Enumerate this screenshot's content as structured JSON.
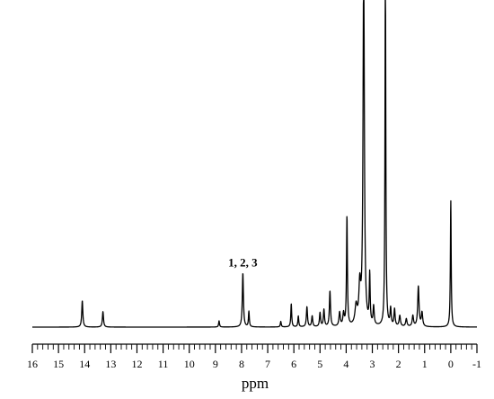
{
  "chart_data": {
    "type": "line",
    "xlabel": "ppm",
    "ylabel": "",
    "title": "",
    "xlim": [
      16,
      -1
    ],
    "x_reversed": true,
    "ylim": [
      0,
      1
    ],
    "grid": false,
    "legend": "none",
    "x_ticks": [
      16,
      15,
      14,
      13,
      12,
      11,
      10,
      9,
      8,
      7,
      6,
      5,
      4,
      3,
      2,
      1,
      0,
      -1
    ],
    "x_tick_labels": [
      "16",
      "15",
      "14",
      "13",
      "12",
      "11",
      "10",
      "9",
      "8",
      "7",
      "6",
      "5",
      "4",
      "3",
      "2",
      "1",
      "0",
      "-1"
    ],
    "minor_tick_step": 0.2,
    "baseline": 0.02,
    "line_color": "#000000",
    "peaks": [
      {
        "ppm": 14.09,
        "height": 0.085,
        "width": 0.025
      },
      {
        "ppm": 13.3,
        "height": 0.05,
        "width": 0.025
      },
      {
        "ppm": 8.86,
        "height": 0.02,
        "width": 0.02
      },
      {
        "ppm": 7.95,
        "height": 0.175,
        "width": 0.025
      },
      {
        "ppm": 7.72,
        "height": 0.05,
        "width": 0.02
      },
      {
        "ppm": 6.5,
        "height": 0.018,
        "width": 0.02
      },
      {
        "ppm": 6.1,
        "height": 0.075,
        "width": 0.02
      },
      {
        "ppm": 5.83,
        "height": 0.035,
        "width": 0.02
      },
      {
        "ppm": 5.5,
        "height": 0.065,
        "width": 0.025
      },
      {
        "ppm": 5.3,
        "height": 0.035,
        "width": 0.025
      },
      {
        "ppm": 5.0,
        "height": 0.045,
        "width": 0.025
      },
      {
        "ppm": 4.85,
        "height": 0.055,
        "width": 0.025
      },
      {
        "ppm": 4.62,
        "height": 0.115,
        "width": 0.025
      },
      {
        "ppm": 4.25,
        "height": 0.045,
        "width": 0.03
      },
      {
        "ppm": 4.1,
        "height": 0.04,
        "width": 0.03
      },
      {
        "ppm": 3.97,
        "height": 0.355,
        "width": 0.02
      },
      {
        "ppm": 3.62,
        "height": 0.06,
        "width": 0.05
      },
      {
        "ppm": 3.48,
        "height": 0.12,
        "width": 0.04
      },
      {
        "ppm": 3.33,
        "height": 1.2,
        "width": 0.03
      },
      {
        "ppm": 3.1,
        "height": 0.16,
        "width": 0.02
      },
      {
        "ppm": 2.95,
        "height": 0.06,
        "width": 0.025
      },
      {
        "ppm": 2.5,
        "height": 1.2,
        "width": 0.018
      },
      {
        "ppm": 2.3,
        "height": 0.055,
        "width": 0.025
      },
      {
        "ppm": 2.15,
        "height": 0.055,
        "width": 0.025
      },
      {
        "ppm": 1.95,
        "height": 0.035,
        "width": 0.03
      },
      {
        "ppm": 1.7,
        "height": 0.025,
        "width": 0.03
      },
      {
        "ppm": 1.45,
        "height": 0.035,
        "width": 0.03
      },
      {
        "ppm": 1.24,
        "height": 0.13,
        "width": 0.03
      },
      {
        "ppm": 1.1,
        "height": 0.045,
        "width": 0.03
      },
      {
        "ppm": 0.0,
        "height": 0.41,
        "width": 0.018
      }
    ],
    "annotations": [
      {
        "text": "1, 2, 3",
        "ppm": 7.95
      }
    ]
  }
}
